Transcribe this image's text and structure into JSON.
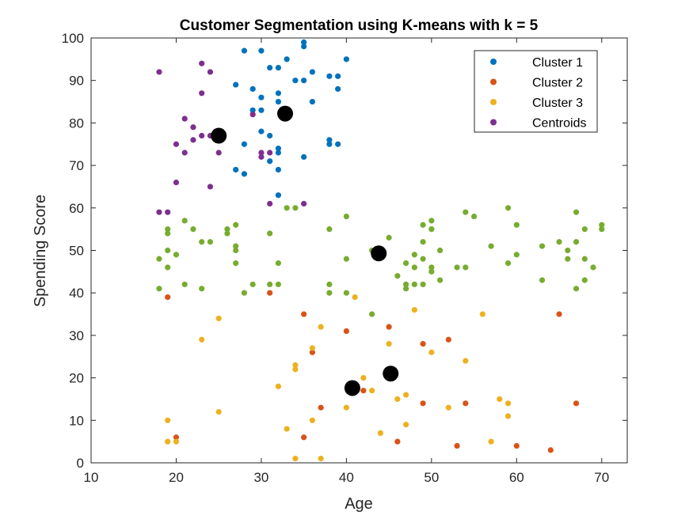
{
  "chart_data": {
    "type": "scatter",
    "title": "Customer Segmentation using K-means with k = 5",
    "xlabel": "Age",
    "ylabel": "Spending Score",
    "xlim": [
      10,
      73
    ],
    "ylim": [
      0,
      100
    ],
    "xticks": [
      10,
      20,
      30,
      40,
      50,
      60,
      70
    ],
    "yticks": [
      0,
      10,
      20,
      30,
      40,
      50,
      60,
      70,
      80,
      90,
      100
    ],
    "grid": false,
    "legend_position": "top-right",
    "legend": [
      "Cluster 1",
      "Cluster 2",
      "Cluster 3",
      "Centroids"
    ],
    "series": [
      {
        "name": "Cluster 1",
        "color": "#0072BD",
        "points": [
          [
            28,
            97
          ],
          [
            30,
            97
          ],
          [
            32,
            93
          ],
          [
            31,
            93
          ],
          [
            33,
            95
          ],
          [
            34,
            90
          ],
          [
            35,
            90
          ],
          [
            36,
            92
          ],
          [
            38,
            91
          ],
          [
            39,
            91
          ],
          [
            40,
            95
          ],
          [
            35,
            98
          ],
          [
            35,
            99
          ],
          [
            27,
            89
          ],
          [
            29,
            88
          ],
          [
            30,
            86
          ],
          [
            32,
            87
          ],
          [
            32,
            85
          ],
          [
            36,
            85
          ],
          [
            29,
            83
          ],
          [
            30,
            83
          ],
          [
            30,
            78
          ],
          [
            31,
            77
          ],
          [
            32,
            74
          ],
          [
            32,
            73
          ],
          [
            31,
            71
          ],
          [
            28,
            75
          ],
          [
            35,
            72
          ],
          [
            38,
            76
          ],
          [
            38,
            75
          ],
          [
            39,
            75
          ],
          [
            27,
            69
          ],
          [
            28,
            68
          ],
          [
            32,
            69
          ],
          [
            32,
            63
          ],
          [
            39,
            88
          ]
        ]
      },
      {
        "name": "Cluster 2",
        "color": "#D95319",
        "points": [
          [
            19,
            39
          ],
          [
            20,
            6
          ],
          [
            31,
            40
          ],
          [
            35,
            35
          ],
          [
            36,
            26
          ],
          [
            37,
            13
          ],
          [
            35,
            6
          ],
          [
            40,
            31
          ],
          [
            42,
            17
          ],
          [
            45,
            32
          ],
          [
            46,
            5
          ],
          [
            49,
            28
          ],
          [
            49,
            14
          ],
          [
            52,
            29
          ],
          [
            53,
            4
          ],
          [
            54,
            14
          ],
          [
            60,
            4
          ],
          [
            64,
            3
          ],
          [
            65,
            35
          ],
          [
            67,
            14
          ]
        ]
      },
      {
        "name": "Cluster 3",
        "color": "#EDB120",
        "points": [
          [
            19,
            10
          ],
          [
            19,
            5
          ],
          [
            20,
            5
          ],
          [
            23,
            29
          ],
          [
            25,
            34
          ],
          [
            25,
            12
          ],
          [
            32,
            18
          ],
          [
            33,
            8
          ],
          [
            34,
            23
          ],
          [
            34,
            22
          ],
          [
            34,
            1
          ],
          [
            36,
            27
          ],
          [
            36,
            10
          ],
          [
            37,
            32
          ],
          [
            37,
            1
          ],
          [
            40,
            13
          ],
          [
            41,
            39
          ],
          [
            42,
            20
          ],
          [
            43,
            17
          ],
          [
            44,
            7
          ],
          [
            45,
            28
          ],
          [
            45,
            20
          ],
          [
            46,
            15
          ],
          [
            47,
            16
          ],
          [
            47,
            9
          ],
          [
            48,
            36
          ],
          [
            50,
            26
          ],
          [
            52,
            13
          ],
          [
            54,
            24
          ],
          [
            56,
            35
          ],
          [
            57,
            5
          ],
          [
            58,
            15
          ],
          [
            59,
            14
          ],
          [
            59,
            11
          ]
        ]
      },
      {
        "name": "Centroids",
        "color": "#7E2F8E",
        "points": [
          [
            18,
            92
          ],
          [
            23,
            94
          ],
          [
            24,
            92
          ],
          [
            23,
            87
          ],
          [
            21,
            81
          ],
          [
            22,
            79
          ],
          [
            20,
            75
          ],
          [
            21,
            73
          ],
          [
            22,
            76
          ],
          [
            23,
            77
          ],
          [
            24,
            77
          ],
          [
            25,
            73
          ],
          [
            29,
            82
          ],
          [
            30,
            73
          ],
          [
            30,
            72
          ],
          [
            31,
            73
          ],
          [
            20,
            66
          ],
          [
            24,
            65
          ],
          [
            18,
            59
          ],
          [
            19,
            59
          ],
          [
            31,
            61
          ],
          [
            35,
            61
          ]
        ]
      },
      {
        "name": "",
        "color": "#77AC30",
        "points": [
          [
            18,
            48
          ],
          [
            18,
            41
          ],
          [
            19,
            55
          ],
          [
            19,
            54
          ],
          [
            19,
            50
          ],
          [
            19,
            46
          ],
          [
            20,
            49
          ],
          [
            21,
            57
          ],
          [
            21,
            42
          ],
          [
            22,
            55
          ],
          [
            23,
            52
          ],
          [
            23,
            41
          ],
          [
            24,
            52
          ],
          [
            26,
            55
          ],
          [
            26,
            54
          ],
          [
            27,
            56
          ],
          [
            27,
            51
          ],
          [
            27,
            50
          ],
          [
            27,
            47
          ],
          [
            28,
            40
          ],
          [
            29,
            42
          ],
          [
            31,
            54
          ],
          [
            31,
            42
          ],
          [
            32,
            47
          ],
          [
            32,
            42
          ],
          [
            33,
            60
          ],
          [
            34,
            60
          ],
          [
            38,
            55
          ],
          [
            38,
            42
          ],
          [
            38,
            40
          ],
          [
            40,
            58
          ],
          [
            40,
            48
          ],
          [
            40,
            40
          ],
          [
            43,
            50
          ],
          [
            43,
            35
          ],
          [
            45,
            53
          ],
          [
            46,
            44
          ],
          [
            47,
            47
          ],
          [
            47,
            42
          ],
          [
            47,
            41
          ],
          [
            48,
            49
          ],
          [
            48,
            46
          ],
          [
            48,
            42
          ],
          [
            49,
            56
          ],
          [
            49,
            52
          ],
          [
            49,
            48
          ],
          [
            49,
            42
          ],
          [
            50,
            57
          ],
          [
            50,
            55
          ],
          [
            50,
            46
          ],
          [
            50,
            45
          ],
          [
            51,
            50
          ],
          [
            51,
            43
          ],
          [
            53,
            46
          ],
          [
            54,
            59
          ],
          [
            54,
            46
          ],
          [
            55,
            58
          ],
          [
            57,
            51
          ],
          [
            59,
            60
          ],
          [
            59,
            47
          ],
          [
            60,
            56
          ],
          [
            60,
            49
          ],
          [
            63,
            51
          ],
          [
            63,
            43
          ],
          [
            65,
            52
          ],
          [
            66,
            50
          ],
          [
            66,
            48
          ],
          [
            67,
            59
          ],
          [
            67,
            52
          ],
          [
            67,
            41
          ],
          [
            68,
            55
          ],
          [
            68,
            48
          ],
          [
            68,
            43
          ],
          [
            69,
            46
          ],
          [
            70,
            56
          ],
          [
            70,
            55
          ]
        ]
      }
    ],
    "centroids": {
      "color": "#000000",
      "points": [
        [
          25.0,
          77.0
        ],
        [
          32.8,
          82.2
        ],
        [
          43.8,
          49.3
        ],
        [
          45.2,
          21.0
        ],
        [
          40.7,
          17.6
        ]
      ]
    }
  }
}
